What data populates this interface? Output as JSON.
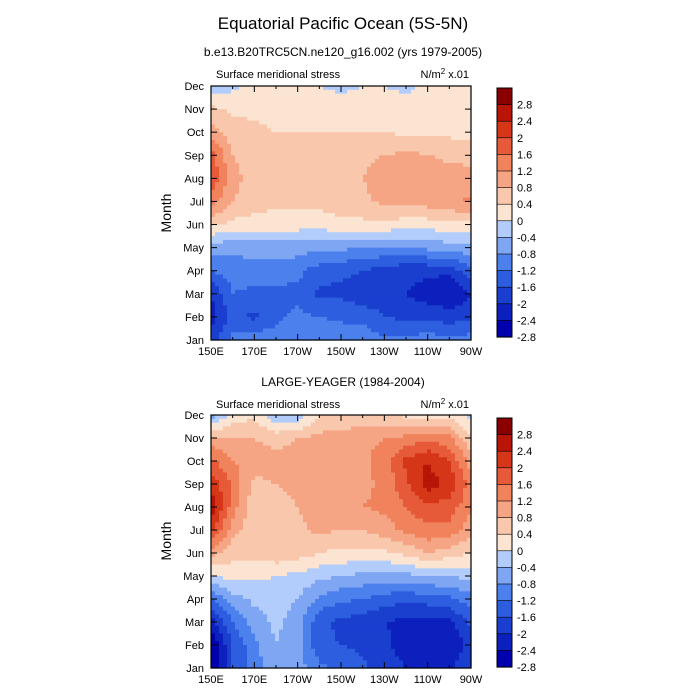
{
  "figure": {
    "title": "Equatorial Pacific Ocean (5S-5N)"
  },
  "chart_data": [
    {
      "type": "contour",
      "subtitle": "b.e13.B20TRC5CN.ne120_g16.002 (yrs 1979-2005)",
      "left_label": "Surface meridional stress",
      "units_base": "N/m",
      "units_exp": "2",
      "units_scale": " x.01",
      "ylabel": "Month",
      "x_ticks": [
        "150E",
        "170E",
        "170W",
        "150W",
        "130W",
        "110W",
        "90W"
      ],
      "y_ticks": [
        "Jan",
        "Feb",
        "Mar",
        "Apr",
        "May",
        "Jun",
        "Jul",
        "Aug",
        "Sep",
        "Oct",
        "Nov",
        "Dec"
      ],
      "colorbar_levels": [
        "2.8",
        "2.4",
        "2",
        "1.6",
        "1.2",
        "0.8",
        "0.4",
        "0",
        "-0.4",
        "-0.8",
        "-1.2",
        "-1.6",
        "-2",
        "-2.4",
        "-2.8"
      ],
      "grid_lon": [
        150,
        160,
        170,
        180,
        190,
        200,
        210,
        220,
        230,
        240,
        250,
        260,
        270
      ],
      "grid_values": [
        [
          -1.8,
          -1.1,
          -0.9,
          -1.0,
          -0.9,
          -0.8,
          -0.9,
          -1.0,
          -1.1,
          -1.1,
          -1.0,
          -1.1,
          -1.0
        ],
        [
          -2.2,
          -1.5,
          -1.7,
          -1.3,
          -1.1,
          -1.2,
          -1.3,
          -1.3,
          -1.6,
          -1.7,
          -1.7,
          -1.8,
          -1.7
        ],
        [
          -2.0,
          -1.2,
          -1.3,
          -1.3,
          -1.3,
          -1.7,
          -1.7,
          -1.9,
          -1.9,
          -2.0,
          -2.2,
          -2.4,
          -2.0
        ],
        [
          -1.2,
          -1.0,
          -1.0,
          -1.0,
          -1.1,
          -1.4,
          -1.5,
          -1.6,
          -1.8,
          -1.9,
          -1.9,
          -1.9,
          -1.3
        ],
        [
          -0.6,
          -0.7,
          -0.6,
          -0.6,
          -0.6,
          -0.7,
          -0.7,
          -0.8,
          -0.8,
          -0.8,
          -0.7,
          -0.6,
          -0.5
        ],
        [
          0.5,
          0.3,
          0.2,
          0.2,
          0.2,
          0.2,
          0.3,
          0.3,
          0.3,
          0.2,
          0.2,
          0.3,
          0.3
        ],
        [
          1.4,
          0.8,
          0.6,
          0.5,
          0.5,
          0.5,
          0.6,
          0.7,
          0.9,
          0.9,
          1.0,
          1.1,
          1.3
        ],
        [
          2.0,
          0.9,
          0.7,
          0.6,
          0.6,
          0.6,
          0.7,
          0.8,
          1.0,
          1.1,
          1.1,
          1.0,
          0.9
        ],
        [
          1.8,
          0.8,
          0.6,
          0.6,
          0.5,
          0.5,
          0.6,
          0.7,
          0.8,
          0.9,
          0.8,
          0.7,
          0.7
        ],
        [
          1.0,
          0.6,
          0.5,
          0.4,
          0.4,
          0.4,
          0.4,
          0.4,
          0.4,
          0.3,
          0.3,
          0.3,
          0.3
        ],
        [
          0.5,
          0.3,
          0.3,
          0.2,
          0.2,
          0.2,
          0.2,
          0.3,
          0.2,
          0.2,
          0.2,
          0.3,
          0.2
        ],
        [
          -0.3,
          -0.1,
          0.1,
          0.1,
          0.0,
          0.0,
          -0.1,
          0.0,
          0.0,
          -0.1,
          0.1,
          0.2,
          0.0
        ]
      ]
    },
    {
      "type": "contour",
      "subtitle": "LARGE-YEAGER (1984-2004)",
      "left_label": "Surface meridional stress",
      "units_base": "N/m",
      "units_exp": "2",
      "units_scale": " x.01",
      "ylabel": "Month",
      "x_ticks": [
        "150E",
        "170E",
        "170W",
        "150W",
        "130W",
        "110W",
        "90W"
      ],
      "y_ticks": [
        "Jan",
        "Feb",
        "Mar",
        "Apr",
        "May",
        "Jun",
        "Jul",
        "Aug",
        "Sep",
        "Oct",
        "Nov",
        "Dec"
      ],
      "colorbar_levels": [
        "2.8",
        "2.4",
        "2",
        "1.6",
        "1.2",
        "0.8",
        "0.4",
        "0",
        "-0.4",
        "-0.8",
        "-1.2",
        "-1.6",
        "-2",
        "-2.4",
        "-2.8"
      ],
      "grid_lon": [
        150,
        160,
        170,
        180,
        190,
        200,
        210,
        220,
        230,
        240,
        250,
        260,
        270
      ],
      "grid_values": [
        [
          -2.9,
          -1.6,
          -1.0,
          -0.5,
          -0.6,
          -1.1,
          -1.3,
          -1.5,
          -1.8,
          -2.0,
          -2.1,
          -2.1,
          -1.6
        ],
        [
          -2.8,
          -1.6,
          -0.9,
          -0.4,
          -0.6,
          -1.5,
          -1.6,
          -1.7,
          -1.9,
          -2.2,
          -2.3,
          -2.4,
          -1.8
        ],
        [
          -2.2,
          -1.2,
          -0.6,
          -0.3,
          -0.6,
          -1.5,
          -1.7,
          -1.8,
          -2.0,
          -2.1,
          -2.2,
          -2.1,
          -1.5
        ],
        [
          -1.2,
          -0.6,
          -0.3,
          -0.2,
          -0.4,
          -0.9,
          -1.1,
          -1.2,
          -1.4,
          -1.5,
          -1.4,
          -1.3,
          -1.0
        ],
        [
          -0.1,
          0.2,
          0.1,
          0.0,
          -0.1,
          -0.3,
          -0.4,
          -0.5,
          -0.5,
          -0.5,
          -0.4,
          -0.4,
          -0.2
        ],
        [
          1.0,
          0.5,
          0.5,
          0.7,
          0.6,
          0.4,
          0.3,
          0.3,
          0.3,
          0.5,
          0.8,
          0.6,
          0.4
        ],
        [
          2.1,
          1.0,
          0.5,
          0.5,
          0.7,
          0.9,
          0.8,
          0.8,
          1.0,
          1.3,
          1.5,
          1.5,
          0.9
        ],
        [
          2.7,
          1.4,
          0.5,
          0.6,
          0.8,
          1.0,
          1.0,
          1.2,
          1.3,
          1.6,
          1.9,
          1.8,
          1.3
        ],
        [
          2.3,
          1.5,
          0.7,
          0.8,
          0.9,
          1.1,
          1.1,
          1.1,
          1.3,
          1.9,
          2.6,
          2.3,
          1.4
        ],
        [
          1.7,
          1.2,
          1.0,
          1.0,
          1.0,
          1.1,
          1.1,
          1.1,
          1.4,
          2.1,
          2.4,
          2.0,
          1.0
        ],
        [
          0.9,
          0.8,
          0.8,
          0.6,
          0.8,
          0.9,
          1.0,
          1.1,
          1.2,
          1.3,
          1.5,
          1.3,
          0.5
        ],
        [
          -0.7,
          0.2,
          0.3,
          -0.3,
          -0.3,
          0.4,
          0.5,
          0.4,
          0.4,
          0.3,
          0.3,
          0.3,
          -0.2
        ]
      ]
    }
  ],
  "colors": {
    "negative": [
      "#0000ad",
      "#0c20bd",
      "#1a3fcf",
      "#2e5ee0",
      "#4c80ec",
      "#7ea6f3",
      "#b2cdfb"
    ],
    "positive": [
      "#fbe5d2",
      "#f9c7ab",
      "#f6a584",
      "#f0825c",
      "#e65a39",
      "#d63618",
      "#b81506",
      "#8a0000"
    ]
  }
}
